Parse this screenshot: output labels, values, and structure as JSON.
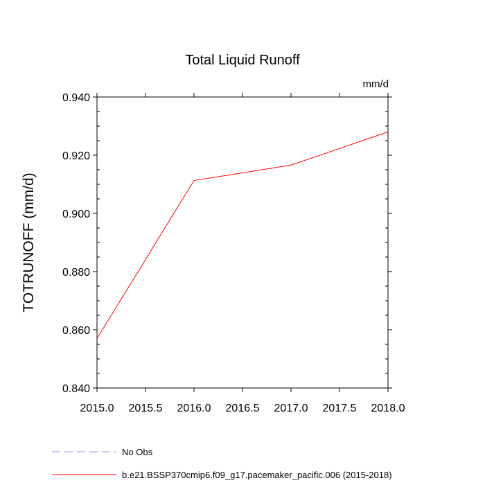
{
  "chart_data": {
    "type": "line",
    "title": "Total Liquid Runoff",
    "units_label": "mm/d",
    "xlabel": "",
    "ylabel": "TOTRUNOFF  (mm/d)",
    "xlim": [
      2015.0,
      2018.0
    ],
    "ylim": [
      0.84,
      0.94
    ],
    "x_ticks": [
      "2015.0",
      "2015.5",
      "2016.0",
      "2016.5",
      "2017.0",
      "2017.5",
      "2018.0"
    ],
    "y_ticks": [
      "0.840",
      "0.860",
      "0.880",
      "0.900",
      "0.920",
      "0.940"
    ],
    "grid": false,
    "legend_position": "bottom",
    "series": [
      {
        "name": "No Obs",
        "color": "#9090f0",
        "style": "dashed",
        "x": [],
        "y": []
      },
      {
        "name": "b.e21.BSSP370cmip6.f09_g17.pacemaker_pacific.006 (2015-2018)",
        "color": "#ff0000",
        "style": "solid",
        "x": [
          2015.0,
          2016.0,
          2017.0,
          2018.0
        ],
        "y": [
          0.857,
          0.9113,
          0.9166,
          0.928
        ]
      }
    ]
  }
}
